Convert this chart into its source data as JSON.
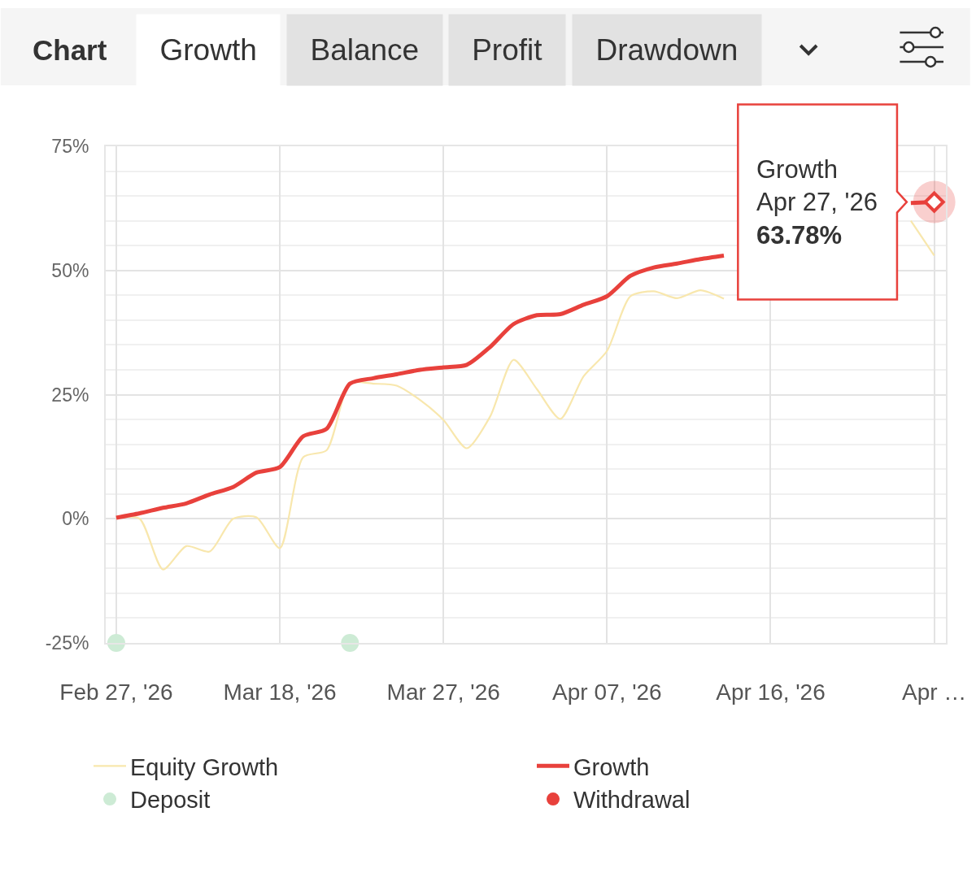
{
  "chart_data": {
    "type": "line",
    "title": "Chart",
    "annotations": [
      "Growth",
      "Balance",
      "Profit",
      "Drawdown",
      {
        "text": "Growth\nApr 27, '26\n63.78%",
        "x": "Apr …",
        "y": 63.78
      }
    ],
    "categories": [
      "Feb 27, '26",
      null,
      null,
      null,
      null,
      null,
      null,
      "Mar 18, '26",
      null,
      null,
      null,
      null,
      null,
      null,
      "Mar 27, '26",
      null,
      null,
      null,
      null,
      null,
      null,
      "Apr 07, '26",
      null,
      null,
      null,
      null,
      null,
      null,
      "Apr 16, '26",
      null,
      null,
      null,
      null,
      null,
      null,
      "Apr …"
    ],
    "series": [
      {
        "name": "Equity Growth",
        "color": "#f8e7ad",
        "values": [
          0.2,
          0.0,
          -10.2,
          -5.5,
          -6.6,
          0.0,
          0.3,
          -5.9,
          12.4,
          13.8,
          27.3,
          27.2,
          26.8,
          23.9,
          19.9,
          14.2,
          20.6,
          32.0,
          26.1,
          20.1,
          28.7,
          33.8,
          44.8,
          45.8,
          44.4,
          46.0,
          44.3,
          null,
          null,
          null,
          null,
          null,
          null,
          null,
          60.0,
          53.0
        ]
      },
      {
        "name": "Growth",
        "color": "#e8413c",
        "values": [
          0.2,
          1.1,
          2.2,
          3.1,
          4.9,
          6.4,
          9.3,
          10.4,
          16.6,
          18.1,
          27.2,
          28.3,
          29.1,
          30.0,
          30.5,
          31.0,
          34.6,
          39.2,
          41.0,
          41.2,
          43.1,
          44.8,
          48.9,
          50.6,
          51.4,
          52.3,
          53.0,
          null,
          null,
          null,
          null,
          null,
          null,
          null,
          63.6,
          63.78
        ]
      },
      {
        "name": "Deposit",
        "type": "scatter",
        "marker": "circle",
        "color": "#cdebd5",
        "values": [
          -25,
          null,
          null,
          null,
          null,
          null,
          null,
          null,
          null,
          null,
          -25,
          null,
          null,
          null,
          null,
          null,
          null,
          null,
          null,
          null,
          null,
          null,
          null,
          null,
          null,
          null,
          null,
          null,
          null,
          null,
          null,
          null,
          null,
          null,
          null,
          null
        ]
      },
      {
        "name": "Withdrawal",
        "type": "scatter",
        "marker": "circle",
        "color": "#e8413c",
        "values": [
          null,
          null,
          null,
          null,
          null,
          null,
          null,
          null,
          null,
          null,
          null,
          null,
          null,
          null,
          null,
          null,
          null,
          null,
          null,
          null,
          null,
          null,
          null,
          null,
          null,
          null,
          null,
          null,
          null,
          null,
          null,
          null,
          null,
          null,
          null,
          null
        ]
      }
    ],
    "ylim": [
      -25,
      75
    ],
    "yticks": [
      {
        "value": -25,
        "label": "-25%"
      },
      {
        "value": -20,
        "label": null
      },
      {
        "value": -15,
        "label": null
      },
      {
        "value": -10,
        "label": null
      },
      {
        "value": -5,
        "label": null
      },
      {
        "value": 0,
        "label": "0%"
      },
      {
        "value": 5,
        "label": null
      },
      {
        "value": 10,
        "label": null
      },
      {
        "value": 15,
        "label": null
      },
      {
        "value": 20,
        "label": null
      },
      {
        "value": 25,
        "label": "25%"
      },
      {
        "value": 30,
        "label": null
      },
      {
        "value": 35,
        "label": null
      },
      {
        "value": 40,
        "label": null
      },
      {
        "value": 45,
        "label": null
      },
      {
        "value": 50,
        "label": "50%"
      },
      {
        "value": 55,
        "label": null
      },
      {
        "value": 60,
        "label": null
      },
      {
        "value": 65,
        "label": null
      },
      {
        "value": 70,
        "label": null
      },
      {
        "value": 75,
        "label": "75%"
      }
    ],
    "grid": true,
    "legend": "bottom"
  }
}
